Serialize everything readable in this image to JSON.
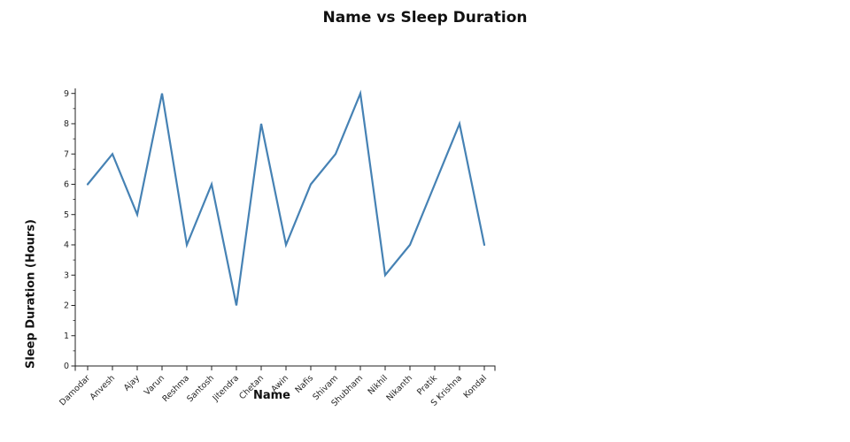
{
  "chart_data": {
    "type": "line",
    "title": "Name vs Sleep Duration",
    "xlabel": "Name",
    "ylabel": "Sleep Duration (Hours)",
    "categories": [
      "Damodar",
      "Anvesh",
      "Ajay",
      "Varun",
      "Reshma",
      "Santosh",
      "Jitendra",
      "Chetan",
      "Awin",
      "Nafis",
      "Shivam",
      "Shubham",
      "Nikhil",
      "Nikanth",
      "Pratik",
      "S Krishna",
      "Kondal"
    ],
    "values": [
      6,
      7,
      5,
      9,
      4,
      6,
      2,
      8,
      4,
      6,
      7,
      9,
      3,
      4,
      6,
      8,
      4
    ],
    "ylim": [
      0,
      9
    ],
    "yticks": [
      0,
      1,
      2,
      3,
      4,
      5,
      6,
      7,
      8,
      9
    ],
    "y_minor_tick_step": 0.5,
    "grid": false,
    "legend": false,
    "line_color": "#4682B4",
    "axis_color": "#222222",
    "tick_label_color": "#262626"
  }
}
